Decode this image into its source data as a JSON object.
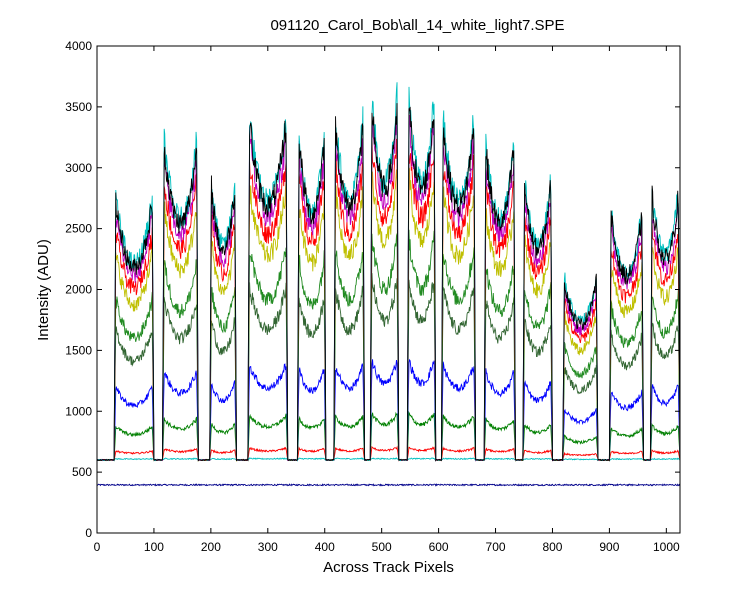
{
  "chart_data": {
    "type": "line",
    "title": "091120_Carol_Bob\\all_14_white_light7.SPE",
    "xlabel": "Across Track Pixels",
    "ylabel": "Intensity (ADU)",
    "xlim": [
      0,
      1024
    ],
    "ylim": [
      0,
      4000
    ],
    "xticks": [
      0,
      100,
      200,
      300,
      400,
      500,
      600,
      700,
      800,
      900,
      1000
    ],
    "yticks": [
      0,
      500,
      1000,
      1500,
      2000,
      2500,
      3000,
      3500,
      4000
    ],
    "grid": false,
    "legend": "none",
    "fiber_edges": [
      [
        30,
        100
      ],
      [
        115,
        178
      ],
      [
        198,
        245
      ],
      [
        265,
        335
      ],
      [
        352,
        402
      ],
      [
        416,
        470
      ],
      [
        480,
        530
      ],
      [
        545,
        595
      ],
      [
        605,
        665
      ],
      [
        680,
        735
      ],
      [
        748,
        800
      ],
      [
        818,
        880
      ],
      [
        900,
        960
      ],
      [
        972,
        1024
      ]
    ],
    "fiber_brightness": [
      2.2,
      2.7,
      2.4,
      2.9,
      2.8,
      2.9,
      3.1,
      3.1,
      2.9,
      2.7,
      2.4,
      1.55,
      2.1,
      2.3
    ],
    "baseline": 600,
    "series": [
      {
        "color": "#00008b",
        "level": 0,
        "floor": 395
      },
      {
        "color": "#00bfbf",
        "level": 0.01
      },
      {
        "color": "#ff0000",
        "level": 0.08
      },
      {
        "color": "#008000",
        "level": 0.3
      },
      {
        "color": "#0000ff",
        "level": 0.65
      },
      {
        "color": "#336633",
        "level": 1.18
      },
      {
        "color": "#228b22",
        "level": 1.45
      },
      {
        "color": "#bfbf00",
        "level": 1.85
      },
      {
        "color": "#ff0000",
        "level": 2.05
      },
      {
        "color": "#bf00bf",
        "level": 2.2
      },
      {
        "color": "#00bfbf",
        "level": 2.35
      },
      {
        "color": "#000000",
        "level": 2.3
      }
    ]
  }
}
